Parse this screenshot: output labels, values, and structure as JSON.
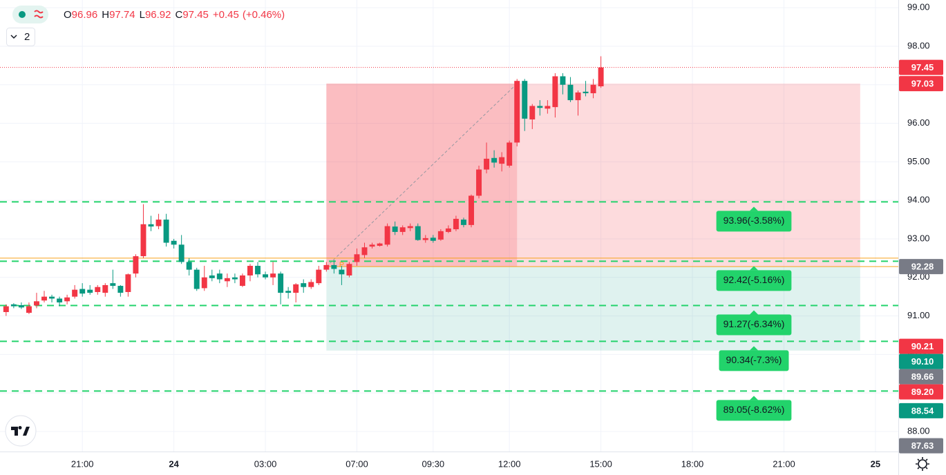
{
  "chart_data": {
    "type": "candlestick",
    "ohlc_labels": [
      "O",
      "H",
      "L",
      "C"
    ],
    "change": "+0.45",
    "change_pct": "(+0.46%)",
    "indicator_count": "2",
    "up_color": "#f23645",
    "down_color": "#089981",
    "candles": [
      {
        "o": 91.1,
        "h": 91.3,
        "l": 91.0,
        "c": 91.25
      },
      {
        "o": 91.3,
        "h": 91.33,
        "l": 91.2,
        "c": 91.25
      },
      {
        "o": 91.28,
        "h": 91.35,
        "l": 91.18,
        "c": 91.22
      },
      {
        "o": 91.08,
        "h": 91.35,
        "l": 91.05,
        "c": 91.25
      },
      {
        "o": 91.27,
        "h": 91.6,
        "l": 91.2,
        "c": 91.38
      },
      {
        "o": 91.4,
        "h": 91.65,
        "l": 91.35,
        "c": 91.5
      },
      {
        "o": 91.5,
        "h": 91.55,
        "l": 91.35,
        "c": 91.45
      },
      {
        "o": 91.45,
        "h": 91.5,
        "l": 91.25,
        "c": 91.35
      },
      {
        "o": 91.38,
        "h": 91.55,
        "l": 91.3,
        "c": 91.48
      },
      {
        "o": 91.5,
        "h": 91.8,
        "l": 91.45,
        "c": 91.68
      },
      {
        "o": 91.7,
        "h": 91.85,
        "l": 91.5,
        "c": 91.58
      },
      {
        "o": 91.68,
        "h": 91.8,
        "l": 91.55,
        "c": 91.6
      },
      {
        "o": 91.62,
        "h": 91.8,
        "l": 91.55,
        "c": 91.75
      },
      {
        "o": 91.6,
        "h": 91.85,
        "l": 91.5,
        "c": 91.8
      },
      {
        "o": 91.85,
        "h": 92.2,
        "l": 91.7,
        "c": 91.78
      },
      {
        "o": 91.78,
        "h": 91.8,
        "l": 91.5,
        "c": 91.6
      },
      {
        "o": 91.62,
        "h": 92.1,
        "l": 91.5,
        "c": 92.08
      },
      {
        "o": 92.1,
        "h": 92.6,
        "l": 92.0,
        "c": 92.55
      },
      {
        "o": 92.55,
        "h": 93.9,
        "l": 92.5,
        "c": 93.38
      },
      {
        "o": 93.38,
        "h": 93.6,
        "l": 93.2,
        "c": 93.32
      },
      {
        "o": 93.33,
        "h": 93.65,
        "l": 93.25,
        "c": 93.5
      },
      {
        "o": 93.5,
        "h": 93.65,
        "l": 92.8,
        "c": 92.9
      },
      {
        "o": 92.95,
        "h": 93.0,
        "l": 92.75,
        "c": 92.85
      },
      {
        "o": 92.85,
        "h": 93.1,
        "l": 92.35,
        "c": 92.4
      },
      {
        "o": 92.4,
        "h": 92.5,
        "l": 92.05,
        "c": 92.2
      },
      {
        "o": 92.2,
        "h": 92.25,
        "l": 91.65,
        "c": 91.7
      },
      {
        "o": 91.72,
        "h": 92.3,
        "l": 91.65,
        "c": 92.0
      },
      {
        "o": 92.05,
        "h": 92.2,
        "l": 91.9,
        "c": 91.98
      },
      {
        "o": 92.1,
        "h": 92.2,
        "l": 91.85,
        "c": 91.95
      },
      {
        "o": 91.9,
        "h": 92.1,
        "l": 91.75,
        "c": 91.98
      },
      {
        "o": 92.0,
        "h": 92.1,
        "l": 91.85,
        "c": 91.95
      },
      {
        "o": 91.78,
        "h": 92.1,
        "l": 91.75,
        "c": 92.05
      },
      {
        "o": 92.05,
        "h": 92.35,
        "l": 91.9,
        "c": 92.3
      },
      {
        "o": 92.3,
        "h": 92.4,
        "l": 92.0,
        "c": 92.08
      },
      {
        "o": 92.08,
        "h": 92.15,
        "l": 91.95,
        "c": 92.0
      },
      {
        "o": 92.0,
        "h": 92.4,
        "l": 91.8,
        "c": 92.1
      },
      {
        "o": 92.1,
        "h": 92.15,
        "l": 91.3,
        "c": 91.6
      },
      {
        "o": 91.65,
        "h": 91.75,
        "l": 91.45,
        "c": 91.6
      },
      {
        "o": 91.6,
        "h": 91.85,
        "l": 91.35,
        "c": 91.82
      },
      {
        "o": 91.85,
        "h": 91.95,
        "l": 91.6,
        "c": 91.75
      },
      {
        "o": 91.75,
        "h": 91.95,
        "l": 91.7,
        "c": 91.88
      },
      {
        "o": 91.85,
        "h": 92.3,
        "l": 91.8,
        "c": 92.2
      },
      {
        "o": 92.2,
        "h": 92.4,
        "l": 92.15,
        "c": 92.32
      },
      {
        "o": 92.32,
        "h": 92.45,
        "l": 92.1,
        "c": 92.22
      },
      {
        "o": 92.2,
        "h": 92.3,
        "l": 91.8,
        "c": 92.08
      },
      {
        "o": 92.05,
        "h": 92.4,
        "l": 92.0,
        "c": 92.35
      },
      {
        "o": 92.4,
        "h": 92.75,
        "l": 92.3,
        "c": 92.6
      },
      {
        "o": 92.58,
        "h": 92.9,
        "l": 92.5,
        "c": 92.78
      },
      {
        "o": 92.8,
        "h": 92.9,
        "l": 92.75,
        "c": 92.85
      },
      {
        "o": 92.82,
        "h": 92.9,
        "l": 92.8,
        "c": 92.88
      },
      {
        "o": 92.85,
        "h": 93.4,
        "l": 92.8,
        "c": 93.33
      },
      {
        "o": 93.32,
        "h": 93.45,
        "l": 93.1,
        "c": 93.18
      },
      {
        "o": 93.18,
        "h": 93.35,
        "l": 93.1,
        "c": 93.3
      },
      {
        "o": 93.28,
        "h": 93.4,
        "l": 93.2,
        "c": 93.33
      },
      {
        "o": 93.33,
        "h": 93.4,
        "l": 92.95,
        "c": 92.97
      },
      {
        "o": 92.97,
        "h": 93.1,
        "l": 92.9,
        "c": 93.02
      },
      {
        "o": 93.03,
        "h": 93.1,
        "l": 92.9,
        "c": 92.95
      },
      {
        "o": 92.98,
        "h": 93.25,
        "l": 92.95,
        "c": 93.2
      },
      {
        "o": 93.18,
        "h": 93.35,
        "l": 93.15,
        "c": 93.27
      },
      {
        "o": 93.25,
        "h": 93.6,
        "l": 93.2,
        "c": 93.52
      },
      {
        "o": 93.5,
        "h": 93.55,
        "l": 93.3,
        "c": 93.36
      },
      {
        "o": 93.36,
        "h": 94.15,
        "l": 93.3,
        "c": 94.12
      },
      {
        "o": 94.12,
        "h": 94.9,
        "l": 94.05,
        "c": 94.8
      },
      {
        "o": 94.8,
        "h": 95.5,
        "l": 94.7,
        "c": 95.08
      },
      {
        "o": 95.1,
        "h": 95.3,
        "l": 94.85,
        "c": 94.98
      },
      {
        "o": 94.95,
        "h": 95.25,
        "l": 94.75,
        "c": 95.12
      },
      {
        "o": 94.9,
        "h": 95.55,
        "l": 94.85,
        "c": 95.5
      },
      {
        "o": 95.5,
        "h": 97.15,
        "l": 95.4,
        "c": 97.1
      },
      {
        "o": 97.1,
        "h": 97.15,
        "l": 95.8,
        "c": 96.12
      },
      {
        "o": 96.1,
        "h": 96.5,
        "l": 95.85,
        "c": 96.45
      },
      {
        "o": 96.45,
        "h": 96.6,
        "l": 96.2,
        "c": 96.4
      },
      {
        "o": 96.38,
        "h": 96.6,
        "l": 96.25,
        "c": 96.45
      },
      {
        "o": 96.42,
        "h": 97.3,
        "l": 96.15,
        "c": 97.22
      },
      {
        "o": 97.22,
        "h": 97.3,
        "l": 96.75,
        "c": 97.0
      },
      {
        "o": 97.0,
        "h": 97.2,
        "l": 96.55,
        "c": 96.6
      },
      {
        "o": 96.6,
        "h": 96.85,
        "l": 96.2,
        "c": 96.8
      },
      {
        "o": 96.82,
        "h": 97.1,
        "l": 96.7,
        "c": 96.78
      },
      {
        "o": 96.78,
        "h": 97.15,
        "l": 96.65,
        "c": 97.0
      },
      {
        "o": 96.96,
        "h": 97.74,
        "l": 96.92,
        "c": 97.45
      }
    ],
    "xlim": [
      -0.8,
      117
    ],
    "xticks": [
      {
        "value": 10,
        "label": "21:00"
      },
      {
        "value": 22,
        "label": "24"
      },
      {
        "value": 34,
        "label": "03:00"
      },
      {
        "value": 46,
        "label": "07:00"
      },
      {
        "value": 56,
        "label": "09:30"
      },
      {
        "value": 66,
        "label": "12:00"
      },
      {
        "value": 78,
        "label": "15:00"
      },
      {
        "value": 90,
        "label": "18:00"
      },
      {
        "value": 102,
        "label": "21:00"
      },
      {
        "value": 114,
        "label": "25"
      }
    ],
    "ylim": [
      87.48,
      99.2
    ],
    "yticks": [
      {
        "value": 88,
        "label": "88.00"
      },
      {
        "value": 89,
        "label": "89.00"
      },
      {
        "value": 90,
        "label": "90.00"
      },
      {
        "value": 91,
        "label": "91.00"
      },
      {
        "value": 92,
        "label": "92.00"
      },
      {
        "value": 93,
        "label": "93.00"
      },
      {
        "value": 94,
        "label": "94.00"
      },
      {
        "value": 95,
        "label": "95.00"
      },
      {
        "value": 96,
        "label": "96.00"
      },
      {
        "value": 97,
        "label": "97.00"
      },
      {
        "value": 98,
        "label": "98.00"
      },
      {
        "value": 99,
        "label": "99.00"
      }
    ],
    "grid": true,
    "orange_line": 92.5,
    "position": {
      "start": 42,
      "split": 67,
      "end": 112,
      "top": 97.03,
      "entry": 92.28,
      "bottom": 90.1,
      "marker": "P"
    },
    "levels": [
      {
        "value": 93.96,
        "label": "93.96(-3.58%)"
      },
      {
        "value": 92.42,
        "label": "92.42(-5.16%)"
      },
      {
        "value": 91.27,
        "label": "91.27(-6.34%)"
      },
      {
        "value": 90.34,
        "label": "90.34(-7.3%)"
      },
      {
        "value": 89.05,
        "label": "89.05(-8.62%)"
      }
    ],
    "level_color": "#22d36b",
    "price_tags": [
      {
        "value": 97.45,
        "label": "97.45",
        "color": "#f23645"
      },
      {
        "value": 97.03,
        "label": "97.03",
        "color": "#f23645"
      },
      {
        "value": 92.28,
        "label": "92.28",
        "color": "#787b86"
      },
      {
        "value": 90.21,
        "label": "90.21",
        "color": "#f23645"
      },
      {
        "value": 90.1,
        "label": "90.10",
        "color": "#089981"
      },
      {
        "value": 89.66,
        "label": "89.66",
        "color": "#787b86"
      },
      {
        "value": 89.2,
        "label": "89.20",
        "color": "#f23645"
      },
      {
        "value": 88.54,
        "label": "88.54",
        "color": "#089981"
      },
      {
        "value": 87.63,
        "label": "87.63",
        "color": "#787b86"
      }
    ]
  }
}
